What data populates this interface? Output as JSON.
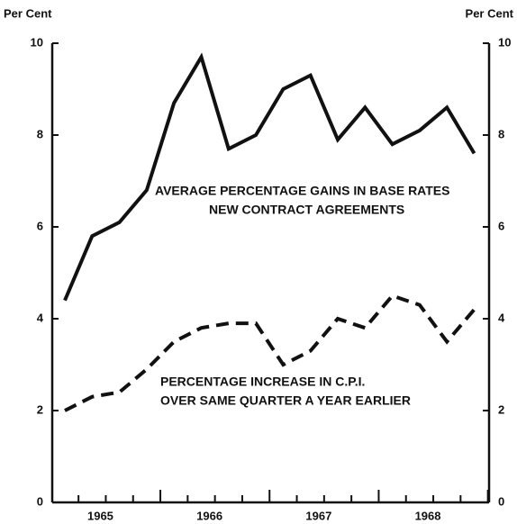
{
  "chart_data": {
    "type": "line",
    "y_label": "Per Cent",
    "y2_label": "Per Cent",
    "categories": [
      null,
      null,
      null,
      null,
      null,
      null,
      null,
      null,
      null,
      null,
      null,
      null,
      null,
      null,
      null,
      null
    ],
    "year_labels": [
      "1965",
      "1966",
      "1967",
      "1968"
    ],
    "series": [
      {
        "color": "#111111",
        "style": "solid",
        "values": [
          4.4,
          5.8,
          6.1,
          6.8,
          8.7,
          9.7,
          7.7,
          8.0,
          9.0,
          9.3,
          7.9,
          8.6,
          7.8,
          8.1,
          8.6,
          7.6
        ]
      },
      {
        "color": "#111111",
        "style": "dashed",
        "values": [
          2.0,
          2.3,
          2.4,
          2.9,
          3.5,
          3.8,
          3.9,
          3.9,
          3.0,
          3.3,
          4.0,
          3.8,
          4.5,
          4.3,
          3.5,
          4.2
        ]
      }
    ],
    "annotations": [
      [
        "AVERAGE PERCENTAGE GAINS IN BASE RATES",
        "NEW CONTRACT AGREEMENTS"
      ],
      [
        "PERCENTAGE INCREASE IN C.P.I.",
        "OVER SAME QUARTER A YEAR EARLIER"
      ]
    ],
    "ylim": [
      0,
      10
    ],
    "yticks": [
      0,
      2,
      4,
      6,
      8,
      10
    ],
    "y2lim": [
      0,
      10
    ],
    "y2ticks": [
      0,
      2,
      4,
      6,
      8,
      10
    ]
  }
}
